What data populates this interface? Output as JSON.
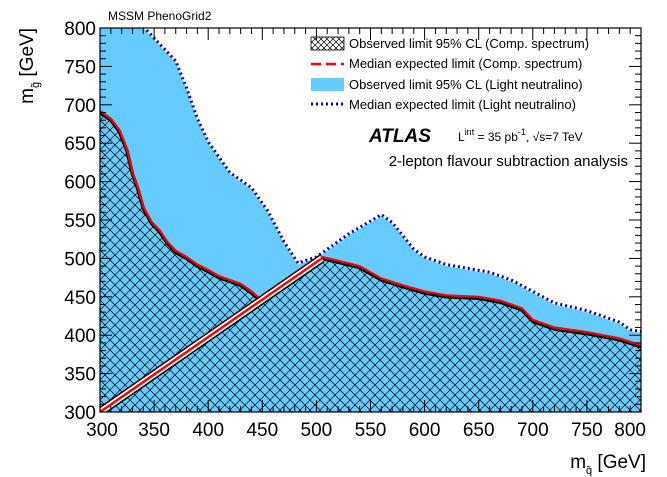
{
  "figure": {
    "grid_label": "MSSM PhenoGrid2",
    "atlas": "ATLAS",
    "lumi_prefix": "L",
    "lumi_sup": "int",
    "lumi_value": " = 35 pb",
    "lumi_unit_sup": "-1",
    "energy_prefix": ", √s=7 TeV",
    "analysis": "2-lepton flavour subtraction analysis",
    "xtitle_main": "m",
    "xtitle_sub": "q̃",
    "xtitle_unit": " [GeV]",
    "ytitle_main": "m",
    "ytitle_sub": "g̃",
    "ytitle_unit": " [GeV]"
  },
  "legend": {
    "obs_comp": "Observed limit 95% CL (Comp. spectrum)",
    "exp_comp": "Median expected limit (Comp. spectrum)",
    "obs_light": "Observed limit 95% CL (Light neutralino)",
    "exp_light": "Median expected limit (Light neutralino)"
  },
  "colors": {
    "light_fill": "#66ccff",
    "light_expected": "#0000cc",
    "comp_expected": "#ff0000",
    "hatch": "#000000"
  },
  "chart_data": {
    "type": "area",
    "xlim": [
      300,
      800
    ],
    "ylim": [
      300,
      800
    ],
    "xticks": [
      300,
      350,
      400,
      450,
      500,
      550,
      600,
      650,
      700,
      750,
      800
    ],
    "yticks": [
      300,
      350,
      400,
      450,
      500,
      550,
      600,
      650,
      700,
      750,
      800
    ],
    "diagonal": [
      [
        300,
        300
      ],
      [
        505,
        500
      ]
    ],
    "series": [
      {
        "name": "Observed limit 95% CL (Light neutralino)",
        "x": [
          340,
          350,
          370,
          380,
          390,
          400,
          420,
          440,
          455,
          470,
          483,
          500,
          530,
          560,
          570,
          590,
          600,
          620,
          640,
          660,
          680,
          700,
          720,
          750,
          780,
          790,
          800
        ],
        "y": [
          800,
          785,
          755,
          720,
          680,
          650,
          610,
          590,
          560,
          520,
          492,
          500,
          530,
          555,
          545,
          510,
          500,
          490,
          485,
          480,
          470,
          455,
          440,
          430,
          415,
          405,
          403
        ]
      },
      {
        "name": "Median expected limit (Light neutralino)",
        "x": [
          340,
          350,
          370,
          380,
          390,
          400,
          420,
          440,
          455,
          470,
          483,
          500,
          530,
          560,
          570,
          590,
          600,
          620,
          640,
          660,
          680,
          700,
          720,
          750,
          780,
          790,
          800
        ],
        "y": [
          802,
          787,
          757,
          722,
          682,
          652,
          612,
          592,
          562,
          522,
          494,
          502,
          532,
          557,
          547,
          512,
          502,
          492,
          487,
          482,
          472,
          457,
          442,
          432,
          417,
          407,
          405
        ]
      },
      {
        "name": "Observed limit 95% CL (Comp. spectrum)",
        "x": [
          300,
          310,
          318,
          325,
          330,
          335,
          340,
          348,
          355,
          362,
          370,
          380,
          390,
          400,
          410,
          420,
          430,
          440,
          448,
          505,
          520,
          540,
          560,
          580,
          600,
          620,
          650,
          670,
          690,
          700,
          720,
          750,
          780,
          800
        ],
        "y": [
          690,
          680,
          665,
          640,
          610,
          590,
          565,
          545,
          535,
          520,
          508,
          500,
          490,
          483,
          475,
          470,
          465,
          455,
          445,
          500,
          495,
          488,
          472,
          463,
          455,
          450,
          448,
          443,
          433,
          418,
          408,
          402,
          394,
          385
        ]
      },
      {
        "name": "Median expected limit (Comp. spectrum)",
        "x": [
          300,
          310,
          318,
          325,
          330,
          335,
          340,
          348,
          355,
          362,
          370,
          380,
          390,
          400,
          410,
          420,
          430,
          440,
          448,
          505,
          520,
          540,
          560,
          580,
          600,
          620,
          650,
          670,
          690,
          700,
          720,
          750,
          780,
          800
        ],
        "y": [
          692,
          682,
          667,
          642,
          612,
          592,
          567,
          547,
          537,
          522,
          510,
          502,
          492,
          485,
          477,
          472,
          467,
          457,
          447,
          502,
          497,
          490,
          474,
          465,
          457,
          452,
          450,
          445,
          435,
          420,
          410,
          404,
          396,
          387
        ]
      }
    ]
  }
}
